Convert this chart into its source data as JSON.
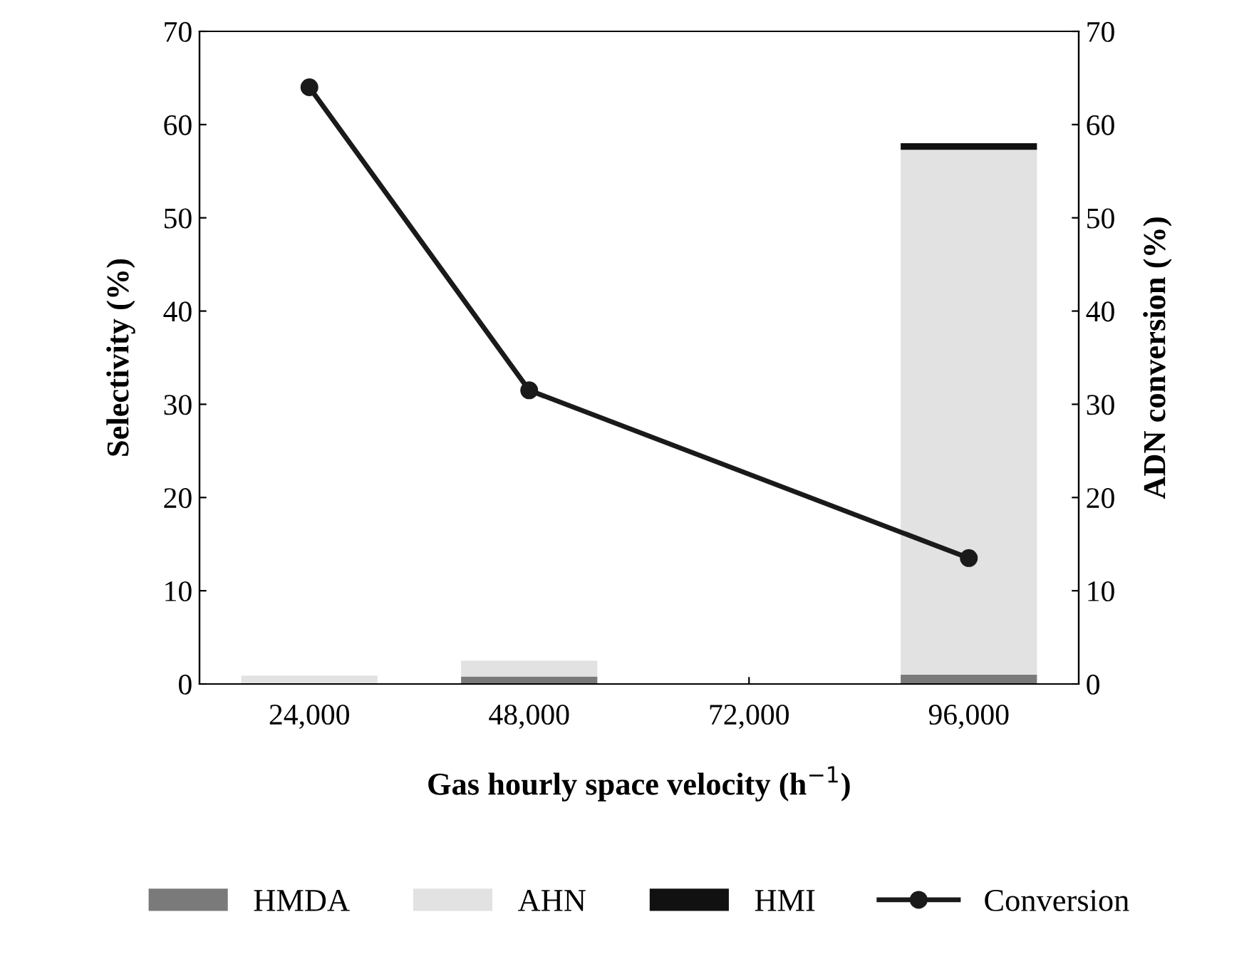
{
  "chart_data": {
    "type": "bar",
    "stacked": true,
    "xlabel": "Gas hourly space velocity (h$^{−1}$)",
    "ylabel": "Selectivity (%)",
    "y2label": "ADN conversion (%)",
    "categories": [
      "24,000",
      "48,000",
      "72,000",
      "96,000"
    ],
    "series": [
      {
        "name": "HMDA",
        "color": "#7a7a7a",
        "values": [
          0,
          0.8,
          0,
          1.0
        ]
      },
      {
        "name": "AHN",
        "color": "#e2e2e2",
        "values": [
          0.9,
          1.7,
          0,
          56.3
        ]
      },
      {
        "name": "HMI",
        "color": "#111111",
        "values": [
          0,
          0,
          0,
          0.7
        ]
      },
      {
        "name": "Conversion",
        "type": "line",
        "axis": "y2",
        "color": "#1a1a1a",
        "x": [
          "24,000",
          "48,000",
          "96,000"
        ],
        "values": [
          64,
          31.5,
          13.5
        ],
        "marker": "circle"
      }
    ],
    "ylim": [
      0,
      70
    ],
    "yticks": [
      0,
      10,
      20,
      30,
      40,
      50,
      60,
      70
    ],
    "y2lim": [
      0,
      70
    ],
    "y2ticks": [
      0,
      10,
      20,
      30,
      40,
      50,
      60,
      70
    ],
    "grid": false,
    "legend": "bottom"
  }
}
